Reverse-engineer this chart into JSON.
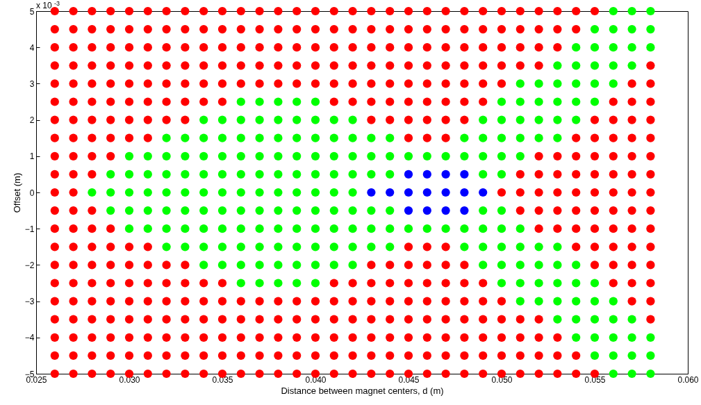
{
  "chart_data": {
    "type": "scatter",
    "xlabel": "Distance between magnet centers, d (m)",
    "ylabel": "Offset (m)",
    "annotations": [
      "x 10$^{-3}$"
    ],
    "marker": "circle",
    "grid": false,
    "xlim": [
      0.025,
      0.06
    ],
    "xticks": [
      0.025,
      {
        "value": 0.03,
        "label": "0.030"
      },
      0.035,
      {
        "value": 0.04,
        "label": "0.040"
      },
      0.045,
      {
        "value": 0.05,
        "label": "0.050"
      },
      0.055,
      {
        "value": 0.06,
        "label": "0.060"
      }
    ],
    "ylim": [
      -5,
      5
    ],
    "yticks": [
      -5,
      -4,
      -3,
      -2,
      -1,
      0,
      1,
      2,
      3,
      4,
      5
    ],
    "series": [
      {
        "color": "#ff0000",
        "x": [
          0.026,
          0.026,
          0.026,
          0.026,
          0.026,
          0.026,
          0.026,
          0.026,
          0.026,
          0.026,
          0.026,
          0.026,
          0.026,
          0.026,
          0.026,
          0.026,
          0.026,
          0.026,
          0.026,
          0.026,
          0.026,
          0.027,
          0.027,
          0.027,
          0.027,
          0.027,
          0.027,
          0.027,
          0.027,
          0.027,
          0.027,
          0.027,
          0.027,
          0.027,
          0.027,
          0.027,
          0.027,
          0.027,
          0.027,
          0.027,
          0.027,
          0.027,
          0.028,
          0.028,
          0.028,
          0.028,
          0.028,
          0.028,
          0.028,
          0.028,
          0.028,
          0.028,
          0.028,
          0.028,
          0.028,
          0.028,
          0.028,
          0.028,
          0.028,
          0.028,
          0.028,
          0.028,
          0.029,
          0.029,
          0.029,
          0.029,
          0.029,
          0.029,
          0.029,
          0.029,
          0.029,
          0.029,
          0.029,
          0.029,
          0.029,
          0.029,
          0.029,
          0.029,
          0.029,
          0.029,
          0.03,
          0.03,
          0.03,
          0.03,
          0.03,
          0.03,
          0.03,
          0.03,
          0.03,
          0.03,
          0.03,
          0.03,
          0.03,
          0.03,
          0.03,
          0.03,
          0.031,
          0.031,
          0.031,
          0.031,
          0.031,
          0.031,
          0.031,
          0.031,
          0.031,
          0.031,
          0.031,
          0.031,
          0.031,
          0.031,
          0.031,
          0.031,
          0.032,
          0.032,
          0.032,
          0.032,
          0.032,
          0.032,
          0.032,
          0.032,
          0.032,
          0.032,
          0.032,
          0.032,
          0.032,
          0.032,
          0.033,
          0.033,
          0.033,
          0.033,
          0.033,
          0.033,
          0.033,
          0.033,
          0.033,
          0.033,
          0.033,
          0.033,
          0.033,
          0.033,
          0.034,
          0.034,
          0.034,
          0.034,
          0.034,
          0.034,
          0.034,
          0.034,
          0.034,
          0.034,
          0.034,
          0.034,
          0.035,
          0.035,
          0.035,
          0.035,
          0.035,
          0.035,
          0.035,
          0.035,
          0.035,
          0.035,
          0.035,
          0.035,
          0.036,
          0.036,
          0.036,
          0.036,
          0.036,
          0.036,
          0.036,
          0.036,
          0.036,
          0.036,
          0.037,
          0.037,
          0.037,
          0.037,
          0.037,
          0.037,
          0.037,
          0.037,
          0.037,
          0.037,
          0.038,
          0.038,
          0.038,
          0.038,
          0.038,
          0.038,
          0.038,
          0.038,
          0.038,
          0.038,
          0.039,
          0.039,
          0.039,
          0.039,
          0.039,
          0.039,
          0.039,
          0.039,
          0.039,
          0.039,
          0.04,
          0.04,
          0.04,
          0.04,
          0.04,
          0.04,
          0.04,
          0.04,
          0.04,
          0.04,
          0.041,
          0.041,
          0.041,
          0.041,
          0.041,
          0.041,
          0.041,
          0.041,
          0.041,
          0.041,
          0.041,
          0.041,
          0.042,
          0.042,
          0.042,
          0.042,
          0.042,
          0.042,
          0.042,
          0.042,
          0.042,
          0.042,
          0.042,
          0.042,
          0.043,
          0.043,
          0.043,
          0.043,
          0.043,
          0.043,
          0.043,
          0.043,
          0.043,
          0.043,
          0.043,
          0.043,
          0.043,
          0.043,
          0.044,
          0.044,
          0.044,
          0.044,
          0.044,
          0.044,
          0.044,
          0.044,
          0.044,
          0.044,
          0.044,
          0.044,
          0.044,
          0.044,
          0.045,
          0.045,
          0.045,
          0.045,
          0.045,
          0.045,
          0.045,
          0.045,
          0.045,
          0.045,
          0.045,
          0.045,
          0.045,
          0.045,
          0.045,
          0.045,
          0.046,
          0.046,
          0.046,
          0.046,
          0.046,
          0.046,
          0.046,
          0.046,
          0.046,
          0.046,
          0.046,
          0.046,
          0.046,
          0.046,
          0.046,
          0.046,
          0.047,
          0.047,
          0.047,
          0.047,
          0.047,
          0.047,
          0.047,
          0.047,
          0.047,
          0.047,
          0.047,
          0.047,
          0.047,
          0.047,
          0.047,
          0.047,
          0.048,
          0.048,
          0.048,
          0.048,
          0.048,
          0.048,
          0.048,
          0.048,
          0.048,
          0.048,
          0.048,
          0.048,
          0.048,
          0.048,
          0.049,
          0.049,
          0.049,
          0.049,
          0.049,
          0.049,
          0.049,
          0.049,
          0.049,
          0.049,
          0.049,
          0.049,
          0.05,
          0.05,
          0.05,
          0.05,
          0.05,
          0.05,
          0.05,
          0.05,
          0.05,
          0.05,
          0.05,
          0.051,
          0.051,
          0.051,
          0.051,
          0.051,
          0.051,
          0.051,
          0.051,
          0.051,
          0.051,
          0.051,
          0.052,
          0.052,
          0.052,
          0.052,
          0.052,
          0.052,
          0.052,
          0.052,
          0.052,
          0.052,
          0.052,
          0.052,
          0.052,
          0.053,
          0.053,
          0.053,
          0.053,
          0.053,
          0.053,
          0.053,
          0.053,
          0.053,
          0.053,
          0.053,
          0.054,
          0.054,
          0.054,
          0.054,
          0.054,
          0.054,
          0.054,
          0.054,
          0.054,
          0.054,
          0.054,
          0.055,
          0.055,
          0.055,
          0.055,
          0.055,
          0.055,
          0.055,
          0.055,
          0.055,
          0.055,
          0.055,
          0.056,
          0.056,
          0.056,
          0.056,
          0.056,
          0.056,
          0.056,
          0.056,
          0.056,
          0.056,
          0.056,
          0.057,
          0.057,
          0.057,
          0.057,
          0.057,
          0.057,
          0.057,
          0.057,
          0.057,
          0.057,
          0.057,
          0.057,
          0.057,
          0.058,
          0.058,
          0.058,
          0.058,
          0.058,
          0.058,
          0.058,
          0.058,
          0.058,
          0.058,
          0.058,
          0.058,
          0.058,
          0.058,
          0.058
        ],
        "values": [
          -5,
          -4.5,
          -4,
          -3.5,
          -3,
          -2.5,
          -2,
          -1.5,
          -1,
          -0.5,
          0,
          0.5,
          1,
          1.5,
          2,
          2.5,
          3,
          3.5,
          4,
          4.5,
          5,
          -5,
          -4.5,
          -4,
          -3.5,
          -3,
          -2.5,
          -2,
          -1.5,
          -1,
          -0.5,
          0,
          0.5,
          1,
          1.5,
          2,
          2.5,
          3,
          3.5,
          4,
          4.5,
          5,
          -5,
          -4.5,
          -4,
          -3.5,
          -3,
          -2.5,
          -2,
          -1.5,
          -1,
          -0.5,
          0.5,
          1,
          1.5,
          2,
          2.5,
          3,
          3.5,
          4,
          4.5,
          5,
          -5,
          -4.5,
          -4,
          -3.5,
          -3,
          -2.5,
          -2,
          -1.5,
          -1,
          1,
          1.5,
          2,
          2.5,
          3,
          3.5,
          4,
          4.5,
          5,
          -5,
          -4.5,
          -4,
          -3.5,
          -3,
          -2.5,
          -2,
          -1.5,
          1.5,
          2,
          2.5,
          3,
          3.5,
          4,
          4.5,
          5,
          -5,
          -4.5,
          -4,
          -3.5,
          -3,
          -2.5,
          -2,
          -1.5,
          1.5,
          2,
          2.5,
          3,
          3.5,
          4,
          4.5,
          5,
          -5,
          -4.5,
          -4,
          -3.5,
          -3,
          -2.5,
          -2,
          2,
          2.5,
          3,
          3.5,
          4,
          4.5,
          5,
          -5,
          -4.5,
          -4,
          -3.5,
          -3,
          -2.5,
          -2,
          2,
          2.5,
          3,
          3.5,
          4,
          4.5,
          5,
          -5,
          -4.5,
          -4,
          -3.5,
          -3,
          -2.5,
          2.5,
          3,
          3.5,
          4,
          4.5,
          5,
          -5,
          -4.5,
          -4,
          -3.5,
          -3,
          -2.5,
          2.5,
          3,
          3.5,
          4,
          4.5,
          5,
          -5,
          -4.5,
          -4,
          -3.5,
          -3,
          3,
          3.5,
          4,
          4.5,
          5,
          -5,
          -4.5,
          -4,
          -3.5,
          -3,
          3,
          3.5,
          4,
          4.5,
          5,
          -5,
          -4.5,
          -4,
          -3.5,
          -3,
          3,
          3.5,
          4,
          4.5,
          5,
          -5,
          -4.5,
          -4,
          -3.5,
          -3,
          3,
          3.5,
          4,
          4.5,
          5,
          -5,
          -4.5,
          -4,
          -3.5,
          -3,
          3,
          3.5,
          4,
          4.5,
          5,
          -5,
          -4.5,
          -4,
          -3.5,
          -3,
          -2.5,
          2.5,
          3,
          3.5,
          4,
          4.5,
          5,
          -5,
          -4.5,
          -4,
          -3.5,
          -3,
          -2.5,
          2.5,
          3,
          3.5,
          4,
          4.5,
          5,
          -5,
          -4.5,
          -4,
          -3.5,
          -3,
          -2.5,
          -2,
          2,
          2.5,
          3,
          3.5,
          4,
          4.5,
          5,
          -5,
          -4.5,
          -4,
          -3.5,
          -3,
          -2.5,
          -2,
          2,
          2.5,
          3,
          3.5,
          4,
          4.5,
          5,
          -5,
          -4.5,
          -4,
          -3.5,
          -3,
          -2.5,
          -2,
          -1.5,
          1.5,
          2,
          2.5,
          3,
          3.5,
          4,
          4.5,
          5,
          -5,
          -4.5,
          -4,
          -3.5,
          -3,
          -2.5,
          -2,
          -1.5,
          1.5,
          2,
          2.5,
          3,
          3.5,
          4,
          4.5,
          5,
          -5,
          -4.5,
          -4,
          -3.5,
          -3,
          -2.5,
          -2,
          -1.5,
          1.5,
          2,
          2.5,
          3,
          3.5,
          4,
          4.5,
          5,
          -5,
          -4.5,
          -4,
          -3.5,
          -3,
          -2.5,
          -2,
          2,
          2.5,
          3,
          3.5,
          4,
          4.5,
          5,
          -5,
          -4.5,
          -4,
          -3.5,
          -3,
          -2.5,
          2.5,
          3,
          3.5,
          4,
          4.5,
          5,
          -5,
          -4.5,
          -4,
          -3.5,
          -3,
          0,
          3,
          3.5,
          4,
          4.5,
          5,
          -5,
          -4.5,
          -4,
          -3.5,
          -0.5,
          0,
          0.5,
          3.5,
          4,
          4.5,
          5,
          -5,
          -4.5,
          -4,
          -3.5,
          -1,
          -0.5,
          0,
          0.5,
          1,
          3.5,
          4,
          4.5,
          5,
          -5,
          -4.5,
          -4,
          -1,
          -0.5,
          0,
          0.5,
          1,
          4,
          4.5,
          5,
          -5,
          -4.5,
          -1.5,
          -1,
          -0.5,
          0,
          0.5,
          1,
          1.5,
          4.5,
          5,
          -5,
          -2,
          -1.5,
          -1,
          -0.5,
          0,
          0.5,
          1,
          1.5,
          2,
          5,
          -2.5,
          -2,
          -1.5,
          -1,
          -0.5,
          0,
          0.5,
          1,
          1.5,
          2,
          2.5,
          -3,
          -2.5,
          -2,
          -1.5,
          -1,
          -0.5,
          0,
          0.5,
          1,
          1.5,
          2,
          2.5,
          3,
          -3.5,
          -3,
          -2.5,
          -2,
          -1.5,
          -1,
          -0.5,
          0,
          0.5,
          1,
          1.5,
          2,
          2.5,
          3,
          3.5
        ]
      },
      {
        "color": "#00ff00",
        "x": [
          0.028,
          0.029,
          0.029,
          0.029,
          0.03,
          0.03,
          0.03,
          0.03,
          0.03,
          0.031,
          0.031,
          0.031,
          0.031,
          0.031,
          0.032,
          0.032,
          0.032,
          0.032,
          0.032,
          0.032,
          0.032,
          0.033,
          0.033,
          0.033,
          0.033,
          0.033,
          0.033,
          0.033,
          0.034,
          0.034,
          0.034,
          0.034,
          0.034,
          0.034,
          0.034,
          0.034,
          0.034,
          0.035,
          0.035,
          0.035,
          0.035,
          0.035,
          0.035,
          0.035,
          0.035,
          0.035,
          0.036,
          0.036,
          0.036,
          0.036,
          0.036,
          0.036,
          0.036,
          0.036,
          0.036,
          0.036,
          0.036,
          0.037,
          0.037,
          0.037,
          0.037,
          0.037,
          0.037,
          0.037,
          0.037,
          0.037,
          0.037,
          0.037,
          0.038,
          0.038,
          0.038,
          0.038,
          0.038,
          0.038,
          0.038,
          0.038,
          0.038,
          0.038,
          0.038,
          0.039,
          0.039,
          0.039,
          0.039,
          0.039,
          0.039,
          0.039,
          0.039,
          0.039,
          0.039,
          0.039,
          0.04,
          0.04,
          0.04,
          0.04,
          0.04,
          0.04,
          0.04,
          0.04,
          0.04,
          0.04,
          0.04,
          0.041,
          0.041,
          0.041,
          0.041,
          0.041,
          0.041,
          0.041,
          0.041,
          0.041,
          0.042,
          0.042,
          0.042,
          0.042,
          0.042,
          0.042,
          0.042,
          0.042,
          0.042,
          0.043,
          0.043,
          0.043,
          0.043,
          0.043,
          0.043,
          0.044,
          0.044,
          0.044,
          0.044,
          0.044,
          0.044,
          0.045,
          0.045,
          0.046,
          0.046,
          0.047,
          0.047,
          0.048,
          0.048,
          0.048,
          0.048,
          0.049,
          0.049,
          0.049,
          0.049,
          0.049,
          0.049,
          0.049,
          0.049,
          0.05,
          0.05,
          0.05,
          0.05,
          0.05,
          0.05,
          0.05,
          0.05,
          0.05,
          0.05,
          0.051,
          0.051,
          0.051,
          0.051,
          0.051,
          0.051,
          0.051,
          0.051,
          0.051,
          0.051,
          0.052,
          0.052,
          0.052,
          0.052,
          0.052,
          0.052,
          0.052,
          0.052,
          0.053,
          0.053,
          0.053,
          0.053,
          0.053,
          0.053,
          0.053,
          0.053,
          0.053,
          0.053,
          0.054,
          0.054,
          0.054,
          0.054,
          0.054,
          0.054,
          0.054,
          0.054,
          0.054,
          0.054,
          0.055,
          0.055,
          0.055,
          0.055,
          0.055,
          0.055,
          0.055,
          0.055,
          0.055,
          0.055,
          0.056,
          0.056,
          0.056,
          0.056,
          0.056,
          0.056,
          0.056,
          0.056,
          0.056,
          0.056,
          0.057,
          0.057,
          0.057,
          0.057,
          0.057,
          0.057,
          0.057,
          0.057,
          0.058,
          0.058,
          0.058,
          0.058,
          0.058,
          0.058
        ],
        "values": [
          0,
          -0.5,
          0,
          0.5,
          -1,
          -0.5,
          0,
          0.5,
          1,
          -1,
          -0.5,
          0,
          0.5,
          1,
          -1.5,
          -1,
          -0.5,
          0,
          0.5,
          1,
          1.5,
          -1.5,
          -1,
          -0.5,
          0,
          0.5,
          1,
          1.5,
          -2,
          -1.5,
          -1,
          -0.5,
          0,
          0.5,
          1,
          1.5,
          2,
          -2,
          -1.5,
          -1,
          -0.5,
          0,
          0.5,
          1,
          1.5,
          2,
          -2.5,
          -2,
          -1.5,
          -1,
          -0.5,
          0,
          0.5,
          1,
          1.5,
          2,
          2.5,
          -2.5,
          -2,
          -1.5,
          -1,
          -0.5,
          0,
          0.5,
          1,
          1.5,
          2,
          2.5,
          -2.5,
          -2,
          -1.5,
          -1,
          -0.5,
          0,
          0.5,
          1,
          1.5,
          2,
          2.5,
          -2.5,
          -2,
          -1.5,
          -1,
          -0.5,
          0,
          0.5,
          1,
          1.5,
          2,
          2.5,
          -2.5,
          -2,
          -1.5,
          -1,
          -0.5,
          0,
          0.5,
          1,
          1.5,
          2,
          2.5,
          -2,
          -1.5,
          -1,
          -0.5,
          0,
          0.5,
          1,
          1.5,
          2,
          -2,
          -1.5,
          -1,
          -0.5,
          0,
          0.5,
          1,
          1.5,
          2,
          -1.5,
          -1,
          -0.5,
          0.5,
          1,
          1.5,
          -1.5,
          -1,
          -0.5,
          0.5,
          1,
          1.5,
          -1,
          1,
          -1,
          1,
          -1,
          1,
          -1.5,
          -1,
          1,
          1.5,
          -2,
          -1.5,
          -1,
          -0.5,
          0.5,
          1,
          1.5,
          2,
          -2.5,
          -2,
          -1.5,
          -1,
          -0.5,
          0.5,
          1,
          1.5,
          2,
          2.5,
          -3,
          -2.5,
          -2,
          -1.5,
          -1,
          1,
          1.5,
          2,
          2.5,
          3,
          -3,
          -2.5,
          -2,
          -1.5,
          1.5,
          2,
          2.5,
          3,
          -3.5,
          -3,
          -2.5,
          -2,
          -1.5,
          1.5,
          2,
          2.5,
          3,
          3.5,
          -4,
          -3.5,
          -3,
          -2.5,
          -2,
          2,
          2.5,
          3,
          3.5,
          4,
          -4.5,
          -4,
          -3.5,
          -3,
          -2.5,
          2.5,
          3,
          3.5,
          4,
          4.5,
          -5,
          -4.5,
          -4,
          -3.5,
          -3,
          3,
          3.5,
          4,
          4.5,
          5,
          -5,
          -4.5,
          -4,
          -3.5,
          3.5,
          4,
          4.5,
          5,
          -5,
          -4.5,
          -4,
          4,
          4.5,
          5
        ]
      },
      {
        "color": "#0000ff",
        "x": [
          0.043,
          0.044,
          0.045,
          0.045,
          0.045,
          0.046,
          0.046,
          0.046,
          0.047,
          0.047,
          0.047,
          0.048,
          0.048,
          0.048,
          0.049
        ],
        "values": [
          0,
          0,
          -0.5,
          0,
          0.5,
          -0.5,
          0,
          0.5,
          -0.5,
          0,
          0.5,
          -0.5,
          0,
          0.5,
          0
        ]
      }
    ]
  }
}
